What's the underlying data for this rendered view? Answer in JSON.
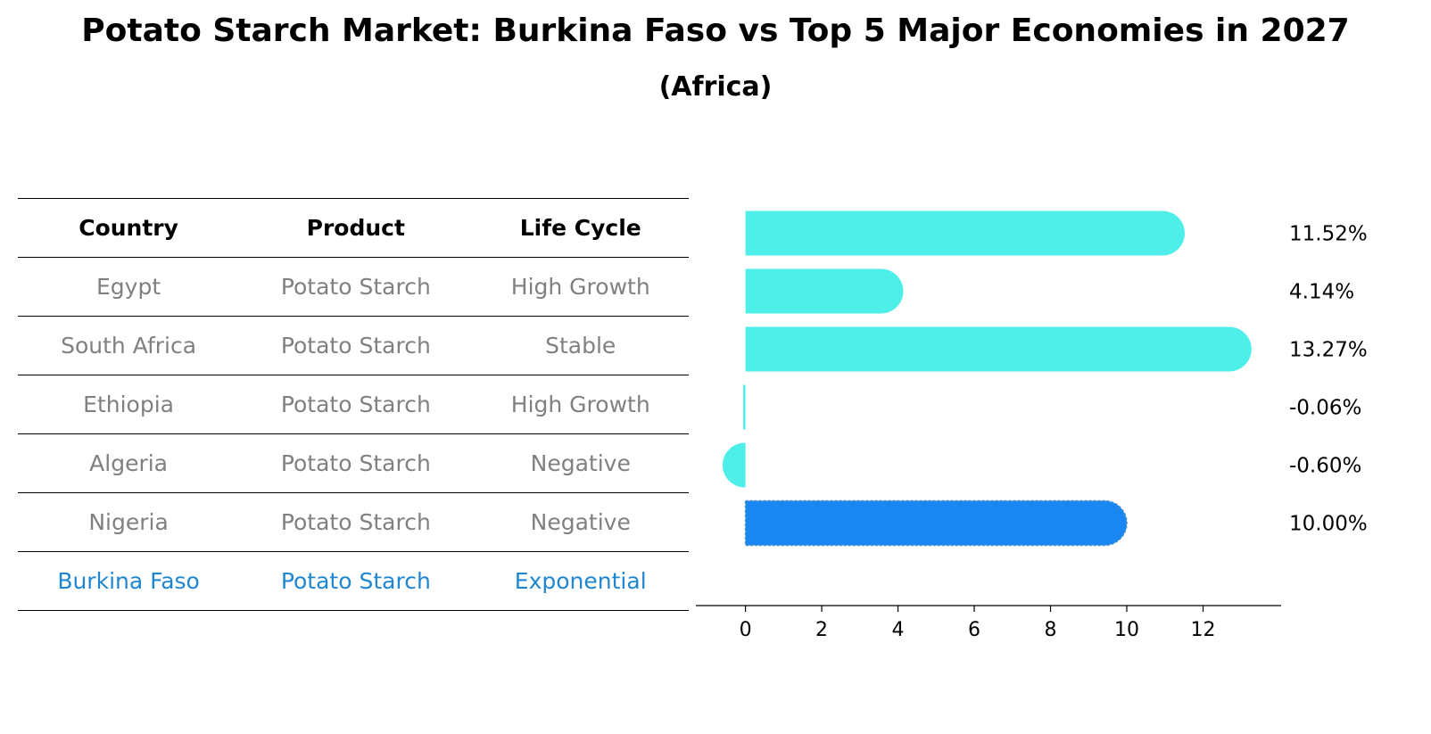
{
  "title": "Potato Starch Market: Burkina Faso vs Top 5 Major Economies in 2027",
  "subtitle": "(Africa)",
  "table": {
    "headers": [
      "Country",
      "Product",
      "Life Cycle"
    ],
    "rows": [
      [
        "Egypt",
        "Potato Starch",
        "High Growth"
      ],
      [
        "South Africa",
        "Potato Starch",
        "Stable"
      ],
      [
        "Ethiopia",
        "Potato Starch",
        "High Growth"
      ],
      [
        "Algeria",
        "Potato Starch",
        "Negative"
      ],
      [
        "Nigeria",
        "Potato Starch",
        "Negative"
      ],
      [
        "Burkina Faso",
        "Potato Starch",
        "Exponential"
      ]
    ]
  },
  "chart_data": {
    "type": "bar",
    "orientation": "horizontal",
    "categories": [
      "Egypt",
      "South Africa",
      "Ethiopia",
      "Algeria",
      "Nigeria",
      "Burkina Faso"
    ],
    "values": [
      11.52,
      4.14,
      13.27,
      -0.06,
      -0.6,
      10.0
    ],
    "value_labels": [
      "11.52%",
      "4.14%",
      "13.27%",
      "-0.06%",
      "-0.60%",
      "10.00%"
    ],
    "highlight": "Burkina Faso",
    "xlim": [
      -1.3,
      14
    ],
    "xticks": [
      0,
      2,
      4,
      6,
      8,
      10,
      12
    ],
    "grid": false,
    "colors": {
      "bar": "#4eeee9",
      "highlight": "#1a86f2"
    }
  }
}
